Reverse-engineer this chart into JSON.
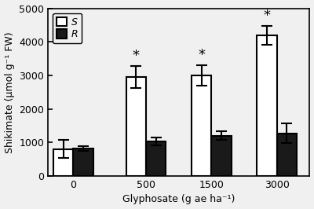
{
  "groups": [
    "0",
    "500",
    "1500",
    "3000"
  ],
  "S_values": [
    800,
    2950,
    3000,
    4200
  ],
  "R_values": [
    820,
    1040,
    1200,
    1270
  ],
  "S_errors": [
    270,
    330,
    310,
    280
  ],
  "R_errors": [
    80,
    120,
    130,
    290
  ],
  "S_color": "#ffffff",
  "R_color": "#1a1a1a",
  "bar_edgecolor": "#000000",
  "ylabel": "Shikimate (μmol g⁻¹ FW)",
  "xlabel": "Glyphosate (g ae ha⁻¹)",
  "ylim": [
    0,
    5000
  ],
  "yticks": [
    0,
    1000,
    2000,
    3000,
    4000,
    5000
  ],
  "asterisk_groups": [
    1,
    2,
    3
  ],
  "bar_width": 0.55,
  "group_positions": [
    0,
    2.0,
    3.8,
    5.6
  ],
  "capsize": 5,
  "linewidth": 1.5,
  "background_color": "#f0f0f0",
  "tick_fontsize": 9,
  "label_fontsize": 9,
  "legend_fontsize": 9
}
